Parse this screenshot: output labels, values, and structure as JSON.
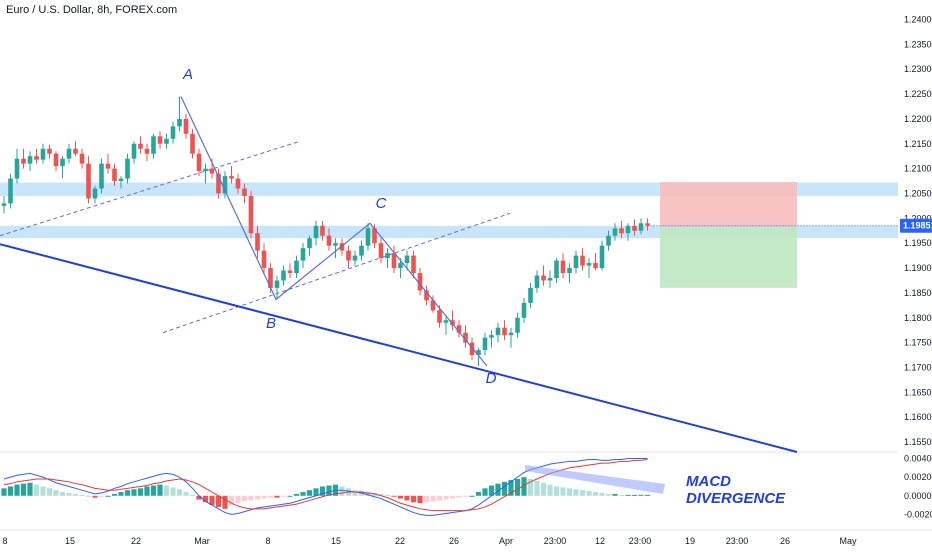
{
  "chart_data": {
    "type": "candlestick",
    "title": "Euro / U.S. Dollar, 8h, FOREX.com",
    "y_axis": {
      "ticks": [
        "1.24000",
        "1.23500",
        "1.23000",
        "1.22500",
        "1.22000",
        "1.21500",
        "1.21000",
        "1.20500",
        "1.20000",
        "1.19500",
        "1.19000",
        "1.18500",
        "1.18000",
        "1.17500",
        "1.17000",
        "1.16500",
        "1.16000",
        "1.15500"
      ],
      "range": [
        1.153,
        1.2415
      ]
    },
    "last_price": "1.19851",
    "x_axis": {
      "ticks": [
        "8",
        "15",
        "22",
        "Mar",
        "8",
        "15",
        "22",
        "26",
        "Apr",
        "23:00",
        "12",
        "23:00",
        "19",
        "23:00",
        "26",
        "May"
      ]
    },
    "pattern_labels": [
      "A",
      "B",
      "C",
      "D"
    ],
    "pattern_points": [
      {
        "label": "A",
        "price": 1.2245
      },
      {
        "label": "B",
        "price": 1.1837
      },
      {
        "label": "C",
        "price": 1.199
      },
      {
        "label": "D",
        "price": 1.1703
      }
    ],
    "support_resistance_zones": [
      {
        "from": 1.2045,
        "to": 1.2072
      },
      {
        "from": 1.196,
        "to": 1.1985
      }
    ],
    "trade_box": {
      "stop": 1.2073,
      "entry": 1.1983,
      "target": 1.186
    },
    "ohlc": [
      [
        1.2025,
        1.2045,
        1.201,
        1.203
      ],
      [
        1.203,
        1.209,
        1.202,
        1.208
      ],
      [
        1.208,
        1.214,
        1.207,
        1.212
      ],
      [
        1.212,
        1.214,
        1.21,
        1.211
      ],
      [
        1.211,
        1.2135,
        1.2095,
        1.2125
      ],
      [
        1.2125,
        1.214,
        1.211,
        1.2118
      ],
      [
        1.2118,
        1.215,
        1.211,
        1.214
      ],
      [
        1.214,
        1.2148,
        1.212,
        1.213
      ],
      [
        1.213,
        1.2135,
        1.2095,
        1.2105
      ],
      [
        1.2105,
        1.2125,
        1.208,
        1.212
      ],
      [
        1.212,
        1.215,
        1.211,
        1.214
      ],
      [
        1.214,
        1.2155,
        1.2125,
        1.213
      ],
      [
        1.213,
        1.214,
        1.21,
        1.211
      ],
      [
        1.211,
        1.2125,
        1.203,
        1.204
      ],
      [
        1.204,
        1.2065,
        1.203,
        1.206
      ],
      [
        1.206,
        1.212,
        1.205,
        1.211
      ],
      [
        1.211,
        1.213,
        1.209,
        1.21
      ],
      [
        1.21,
        1.211,
        1.2065,
        1.2075
      ],
      [
        1.2075,
        1.2085,
        1.206,
        1.208
      ],
      [
        1.208,
        1.213,
        1.207,
        1.212
      ],
      [
        1.212,
        1.2155,
        1.211,
        1.215
      ],
      [
        1.215,
        1.2165,
        1.213,
        1.214
      ],
      [
        1.214,
        1.215,
        1.2115,
        1.213
      ],
      [
        1.213,
        1.217,
        1.212,
        1.2165
      ],
      [
        1.2165,
        1.2175,
        1.214,
        1.215
      ],
      [
        1.215,
        1.217,
        1.214,
        1.216
      ],
      [
        1.216,
        1.2195,
        1.215,
        1.2185
      ],
      [
        1.2185,
        1.2245,
        1.2175,
        1.22
      ],
      [
        1.22,
        1.221,
        1.216,
        1.217
      ],
      [
        1.217,
        1.218,
        1.212,
        1.213
      ],
      [
        1.213,
        1.214,
        1.2085,
        1.2095
      ],
      [
        1.2095,
        1.211,
        1.207,
        1.21
      ],
      [
        1.21,
        1.212,
        1.208,
        1.209
      ],
      [
        1.209,
        1.21,
        1.204,
        1.205
      ],
      [
        1.205,
        1.2095,
        1.204,
        1.2085
      ],
      [
        1.2085,
        1.2105,
        1.207,
        1.208
      ],
      [
        1.208,
        1.209,
        1.205,
        1.206
      ],
      [
        1.206,
        1.207,
        1.203,
        1.2045
      ],
      [
        1.2045,
        1.2055,
        1.196,
        1.197
      ],
      [
        1.197,
        1.1985,
        1.192,
        1.1935
      ],
      [
        1.1935,
        1.195,
        1.189,
        1.19
      ],
      [
        1.19,
        1.191,
        1.185,
        1.186
      ],
      [
        1.186,
        1.1885,
        1.1837,
        1.1875
      ],
      [
        1.1875,
        1.1905,
        1.1865,
        1.1895
      ],
      [
        1.1895,
        1.191,
        1.188,
        1.189
      ],
      [
        1.189,
        1.1925,
        1.188,
        1.1915
      ],
      [
        1.1915,
        1.195,
        1.19,
        1.194
      ],
      [
        1.194,
        1.1965,
        1.1925,
        1.196
      ],
      [
        1.196,
        1.1995,
        1.1945,
        1.1985
      ],
      [
        1.1985,
        1.1995,
        1.1955,
        1.1965
      ],
      [
        1.1965,
        1.198,
        1.1935,
        1.1945
      ],
      [
        1.1945,
        1.196,
        1.192,
        1.195
      ],
      [
        1.195,
        1.196,
        1.1925,
        1.1935
      ],
      [
        1.1935,
        1.1945,
        1.19,
        1.1915
      ],
      [
        1.1915,
        1.1935,
        1.1905,
        1.1925
      ],
      [
        1.1925,
        1.1955,
        1.1915,
        1.1945
      ],
      [
        1.1945,
        1.199,
        1.1935,
        1.198
      ],
      [
        1.198,
        1.1988,
        1.194,
        1.195
      ],
      [
        1.195,
        1.196,
        1.191,
        1.192
      ],
      [
        1.192,
        1.194,
        1.19,
        1.193
      ],
      [
        1.193,
        1.1945,
        1.189,
        1.19
      ],
      [
        1.19,
        1.192,
        1.188,
        1.191
      ],
      [
        1.191,
        1.1935,
        1.1895,
        1.1925
      ],
      [
        1.1925,
        1.1935,
        1.188,
        1.189
      ],
      [
        1.189,
        1.19,
        1.1845,
        1.1855
      ],
      [
        1.1855,
        1.1865,
        1.1825,
        1.1835
      ],
      [
        1.1835,
        1.1845,
        1.181,
        1.1815
      ],
      [
        1.1815,
        1.1825,
        1.178,
        1.179
      ],
      [
        1.179,
        1.1805,
        1.1765,
        1.1795
      ],
      [
        1.1795,
        1.1815,
        1.1775,
        1.1785
      ],
      [
        1.1785,
        1.1795,
        1.176,
        1.177
      ],
      [
        1.177,
        1.1785,
        1.174,
        1.175
      ],
      [
        1.175,
        1.176,
        1.1715,
        1.1725
      ],
      [
        1.1725,
        1.174,
        1.1703,
        1.1735
      ],
      [
        1.1735,
        1.177,
        1.1725,
        1.176
      ],
      [
        1.176,
        1.1775,
        1.174,
        1.1765
      ],
      [
        1.1765,
        1.179,
        1.175,
        1.178
      ],
      [
        1.178,
        1.1795,
        1.1755,
        1.1765
      ],
      [
        1.1765,
        1.178,
        1.174,
        1.177
      ],
      [
        1.177,
        1.181,
        1.176,
        1.18
      ],
      [
        1.18,
        1.184,
        1.179,
        1.183
      ],
      [
        1.183,
        1.187,
        1.182,
        1.186
      ],
      [
        1.186,
        1.1895,
        1.185,
        1.1885
      ],
      [
        1.1885,
        1.1905,
        1.1865,
        1.1875
      ],
      [
        1.1875,
        1.1895,
        1.186,
        1.188
      ],
      [
        1.188,
        1.192,
        1.187,
        1.1915
      ],
      [
        1.1915,
        1.193,
        1.188,
        1.189
      ],
      [
        1.189,
        1.191,
        1.187,
        1.19
      ],
      [
        1.19,
        1.1935,
        1.189,
        1.1925
      ],
      [
        1.1925,
        1.194,
        1.1895,
        1.1905
      ],
      [
        1.1905,
        1.192,
        1.188,
        1.191
      ],
      [
        1.191,
        1.193,
        1.1895,
        1.19
      ],
      [
        1.19,
        1.1955,
        1.1895,
        1.1945
      ],
      [
        1.1945,
        1.1975,
        1.1935,
        1.1965
      ],
      [
        1.1965,
        1.199,
        1.1955,
        1.198
      ],
      [
        1.198,
        1.1995,
        1.196,
        1.197
      ],
      [
        1.197,
        1.199,
        1.1955,
        1.1985
      ],
      [
        1.1985,
        1.1998,
        1.1965,
        1.1975
      ],
      [
        1.1975,
        1.2,
        1.1968,
        1.199
      ],
      [
        1.199,
        1.2,
        1.1975,
        1.1985
      ]
    ],
    "macd": {
      "y_ticks": [
        "0.00400",
        "0.00200",
        "0.00000",
        "-0.00200"
      ],
      "range": [
        -0.0026,
        0.0047
      ],
      "histogram": [
        0.0008,
        0.001,
        0.0012,
        0.0013,
        0.0014,
        0.0012,
        0.001,
        0.0008,
        0.0006,
        0.0004,
        0.0003,
        0.0002,
        0.0001,
        0.0,
        -0.0002,
        -0.0001,
        0.0,
        0.0002,
        0.0004,
        0.0006,
        0.0007,
        0.0008,
        0.001,
        0.0011,
        0.0012,
        0.0011,
        0.0009,
        0.0007,
        0.0004,
        0.0001,
        -0.0004,
        -0.0007,
        -0.001,
        -0.0012,
        -0.0014,
        -0.001,
        -0.0008,
        -0.0006,
        -0.0005,
        -0.0004,
        -0.0003,
        -0.0002,
        -0.0002,
        -0.0001,
        0.0,
        0.0002,
        0.0004,
        0.0006,
        0.0008,
        0.001,
        0.0011,
        0.0012,
        0.001,
        0.0008,
        0.0006,
        0.0005,
        0.0004,
        0.0003,
        0.0002,
        0.0001,
        -0.0001,
        -0.0003,
        -0.0005,
        -0.0007,
        -0.0008,
        -0.0007,
        -0.0006,
        -0.0005,
        -0.0004,
        -0.0003,
        -0.0002,
        -0.0001,
        0.0,
        0.0004,
        0.0008,
        0.0011,
        0.0013,
        0.0015,
        0.0017,
        0.0018,
        0.002,
        0.0018,
        0.0016,
        0.0014,
        0.0012,
        0.001,
        0.0009,
        0.0008,
        0.0007,
        0.0006,
        0.0005,
        0.0004,
        0.0003,
        0.0002,
        0.0002,
        0.0001,
        0.0001,
        0.0001,
        0.0001,
        0.0001
      ],
      "macd_line": [
        0.0018,
        0.002,
        0.0022,
        0.0023,
        0.0024,
        0.0022,
        0.002,
        0.0017,
        0.0014,
        0.0012,
        0.001,
        0.0008,
        0.0006,
        0.0004,
        0.0002,
        0.0003,
        0.0005,
        0.0008,
        0.001,
        0.0013,
        0.0015,
        0.0017,
        0.0019,
        0.0021,
        0.0023,
        0.0024,
        0.0023,
        0.002,
        0.0015,
        0.0008,
        0.0,
        -0.0006,
        -0.001,
        -0.0014,
        -0.0018,
        -0.002,
        -0.0019,
        -0.0017,
        -0.0015,
        -0.0013,
        -0.0012,
        -0.0011,
        -0.001,
        -0.0009,
        -0.0008,
        -0.0006,
        -0.0004,
        -0.0002,
        0.0,
        0.0002,
        0.0004,
        0.0006,
        0.0006,
        0.0005,
        0.0004,
        0.0003,
        0.0001,
        -0.0001,
        -0.0003,
        -0.0006,
        -0.0009,
        -0.0012,
        -0.0015,
        -0.0018,
        -0.002,
        -0.0021,
        -0.0021,
        -0.002,
        -0.0019,
        -0.0018,
        -0.0017,
        -0.0016,
        -0.0014,
        -0.001,
        -0.0005,
        0.0,
        0.0005,
        0.001,
        0.0015,
        0.002,
        0.0025,
        0.0028,
        0.003,
        0.0032,
        0.0034,
        0.0035,
        0.0036,
        0.0037,
        0.0037,
        0.0038,
        0.0039,
        0.0039,
        0.0038,
        0.0038,
        0.0039,
        0.0039,
        0.004,
        0.004,
        0.004,
        0.004
      ],
      "signal_line": [
        0.0012,
        0.0013,
        0.0015,
        0.0016,
        0.0017,
        0.0018,
        0.0018,
        0.0018,
        0.0017,
        0.0016,
        0.0015,
        0.0013,
        0.0012,
        0.001,
        0.0008,
        0.0007,
        0.0006,
        0.0006,
        0.0007,
        0.0008,
        0.0009,
        0.001,
        0.0011,
        0.0013,
        0.0014,
        0.0016,
        0.0017,
        0.0018,
        0.0017,
        0.0015,
        0.0012,
        0.0008,
        0.0004,
        0.0,
        -0.0004,
        -0.0008,
        -0.0011,
        -0.0013,
        -0.0014,
        -0.0014,
        -0.0014,
        -0.0013,
        -0.0012,
        -0.0011,
        -0.001,
        -0.0009,
        -0.0007,
        -0.0005,
        -0.0003,
        -0.0001,
        0.0001,
        0.0002,
        0.0003,
        0.0004,
        0.0004,
        0.0004,
        0.0003,
        0.0002,
        0.0,
        -0.0002,
        -0.0005,
        -0.0008,
        -0.001,
        -0.0012,
        -0.0014,
        -0.0015,
        -0.0016,
        -0.0016,
        -0.0016,
        -0.0016,
        -0.0016,
        -0.0016,
        -0.0015,
        -0.0014,
        -0.0012,
        -0.0009,
        -0.0005,
        -0.0001,
        0.0003,
        0.0007,
        0.0011,
        0.0015,
        0.0018,
        0.0021,
        0.0024,
        0.0026,
        0.0028,
        0.003,
        0.0031,
        0.0032,
        0.0033,
        0.0034,
        0.0035,
        0.0035,
        0.0036,
        0.0037,
        0.0037,
        0.0038,
        0.0038,
        0.0039
      ],
      "annotation": [
        "MACD",
        "DIVERGENCE"
      ]
    },
    "colors": {
      "up": "#26a69a",
      "down": "#ef5350",
      "zone": "#bbdefb",
      "pattern": "#5b6fd6",
      "trendline": "#1f3fd6",
      "stop_box": "#f8bcbc",
      "target_box": "#bfe8c1",
      "hist_up_strong": "#26a69a",
      "hist_up_weak": "#b2dfdb",
      "hist_down_strong": "#ef5350",
      "hist_down_weak": "#ffcdd2",
      "macd_line": "#2962ff",
      "signal_line": "#e53935",
      "last_price_tag": "#2962ff"
    }
  }
}
